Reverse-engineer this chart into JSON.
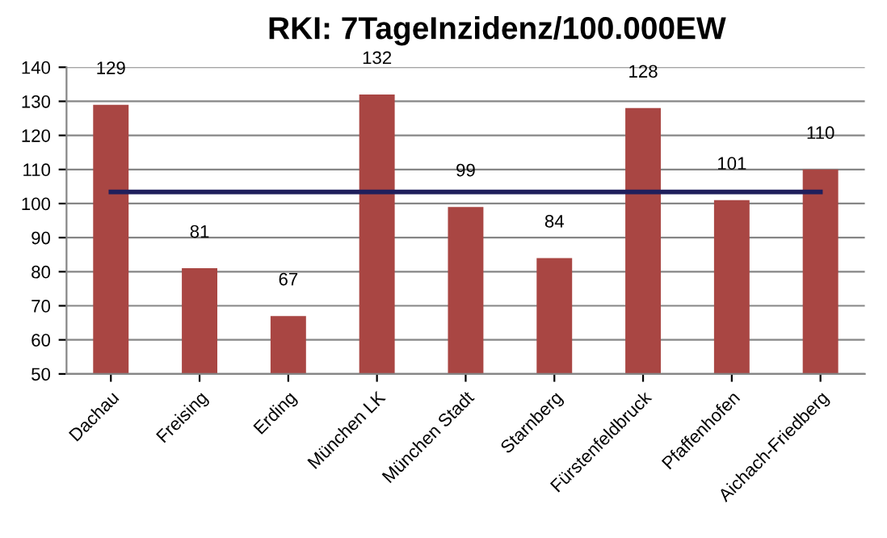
{
  "chart_data": {
    "type": "bar",
    "title": "RKI: 7TageInzidenz/100.000EW",
    "categories": [
      "Dachau",
      "Freising",
      "Erding",
      "München LK",
      "München Stadt",
      "Starnberg",
      "Fürstenfeldbruck",
      "Pfaffenhofen",
      "Aichach-Friedberg"
    ],
    "series": [
      {
        "color": "#a94643",
        "values": [
          129,
          81,
          67,
          132,
          99,
          84,
          128,
          101,
          110
        ],
        "data_labels": true
      },
      {
        "type": "line",
        "color": "#1f1f5c",
        "values": [
          103.4,
          103.4,
          103.4,
          103.4,
          103.4,
          103.4,
          103.4,
          103.4,
          103.4
        ]
      }
    ],
    "ylim": [
      50,
      140
    ],
    "yticks": [
      50,
      60,
      70,
      80,
      90,
      100,
      110,
      120,
      130,
      140
    ],
    "grid": "y",
    "legend": false
  }
}
